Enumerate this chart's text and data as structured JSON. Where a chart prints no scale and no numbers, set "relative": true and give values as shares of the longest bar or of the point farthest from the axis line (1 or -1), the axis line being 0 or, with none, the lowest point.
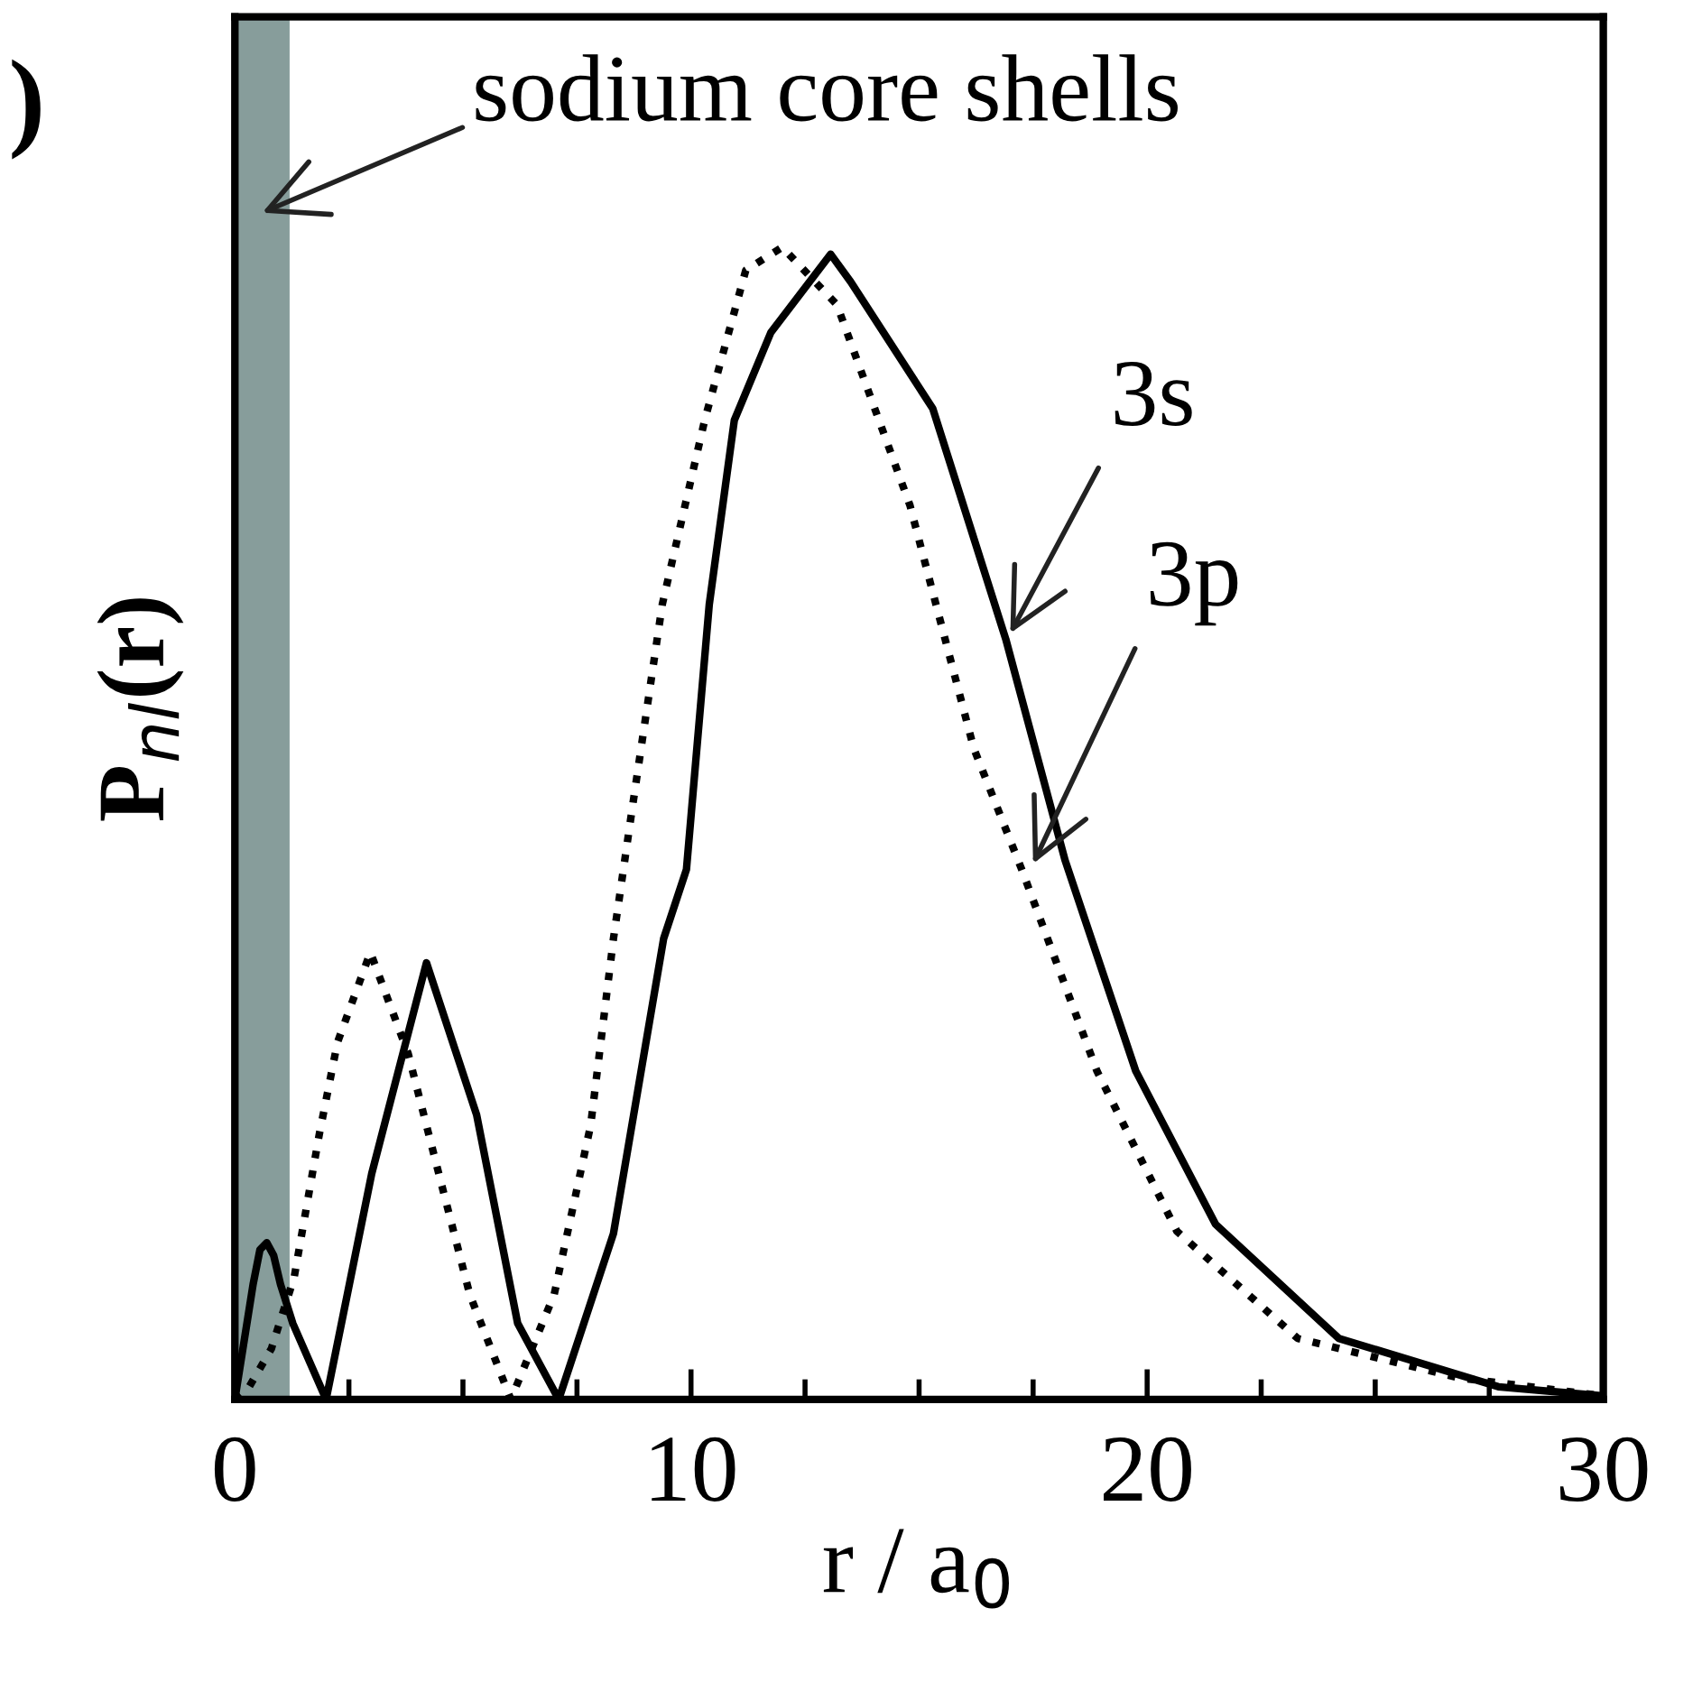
{
  "chart_data": {
    "type": "line",
    "xlabel": "r / a$_{0}$",
    "ylabel": "P$_{nl}$(r)",
    "relative": true,
    "xlim": [
      0,
      30
    ],
    "xticks": [
      0,
      {
        "value": 2.5,
        "label": null
      },
      {
        "value": 5,
        "label": null
      },
      {
        "value": 7.5,
        "label": null
      },
      10,
      {
        "value": 12.5,
        "label": null
      },
      {
        "value": 15,
        "label": null
      },
      {
        "value": 17.5,
        "label": null
      },
      20,
      {
        "value": 22.5,
        "label": null
      },
      {
        "value": 25,
        "label": null
      },
      {
        "value": 27.5,
        "label": null
      },
      30
    ],
    "grid": false,
    "legend": false,
    "marker": "none",
    "series": [
      {
        "color": "#000000",
        "line_style": "solid",
        "x": [
          0,
          0.4,
          0.55,
          0.7,
          0.85,
          1.0,
          1.27,
          2.0,
          3.0,
          4.2,
          5.3,
          6.2,
          7.1,
          8.3,
          9.4,
          9.9,
          10.4,
          10.95,
          11.75,
          13.06,
          13.5,
          15.3,
          16.9,
          18.2,
          19.75,
          21.5,
          24.2,
          27.7,
          30
        ],
        "values": [
          0,
          0.1,
          0.13,
          0.136,
          0.125,
          0.1,
          0.066,
          0,
          0.196,
          0.379,
          0.247,
          0.066,
          0,
          0.144,
          0.4,
          0.46,
          0.69,
          0.85,
          0.926,
          0.994,
          0.97,
          0.86,
          0.66,
          0.468,
          0.285,
          0.152,
          0.053,
          0.011,
          0.003
        ]
      },
      {
        "color": "#000000",
        "line_style": "dotted",
        "x": [
          0,
          0.3,
          0.8,
          1.3,
          1.85,
          2.25,
          2.97,
          3.8,
          4.47,
          5.15,
          6.05,
          7.0,
          7.8,
          8.3,
          8.7,
          9.37,
          10.3,
          11.2,
          12.0,
          13.2,
          14.8,
          16.2,
          17.25,
          18.9,
          20.65,
          23.3,
          26.8,
          30
        ],
        "values": [
          0,
          0.01,
          0.044,
          0.106,
          0.23,
          0.31,
          0.388,
          0.3,
          0.196,
          0.091,
          0,
          0.091,
          0.238,
          0.4,
          0.51,
          0.69,
          0.85,
          0.98,
          1.0,
          0.95,
          0.776,
          0.565,
          0.46,
          0.285,
          0.146,
          0.053,
          0.019,
          0.003
        ]
      }
    ],
    "bands": [
      {
        "axis": "x",
        "from": 0,
        "to": 1.2,
        "label": "sodium core shells",
        "color": "#879d9b"
      }
    ],
    "annotations": [
      ")",
      {
        "text": "3s",
        "x": 17.0,
        "y": 0.665
      },
      {
        "text": "3p",
        "x": 17.5,
        "y": 0.465
      }
    ]
  }
}
